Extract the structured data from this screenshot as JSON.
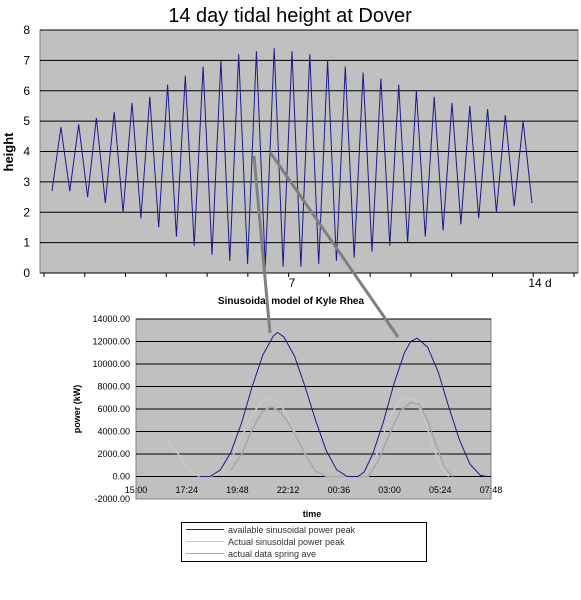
{
  "chart_data": [
    {
      "type": "line",
      "title": "14 day tidal height at Dover",
      "xlabel": "",
      "ylabel": "height",
      "ylim": [
        0,
        8
      ],
      "yticks": [
        "0",
        "1",
        "2",
        "3",
        "4",
        "5",
        "6",
        "7",
        "8"
      ],
      "xtick_labels": [
        "7",
        "14 d"
      ],
      "grid": true,
      "series": [
        {
          "values": [
            2.7,
            4.8,
            2.7,
            4.9,
            2.5,
            5.1,
            2.3,
            5.3,
            2.0,
            5.6,
            1.8,
            5.8,
            1.5,
            6.2,
            1.2,
            6.5,
            0.9,
            6.8,
            0.6,
            7.0,
            0.4,
            7.2,
            0.3,
            7.3,
            0.2,
            7.4,
            0.2,
            7.3,
            0.2,
            7.2,
            0.3,
            7.0,
            0.4,
            6.8,
            0.5,
            6.6,
            0.7,
            6.4,
            0.9,
            6.2,
            1.0,
            6.0,
            1.2,
            5.8,
            1.4,
            5.6,
            1.6,
            5.5,
            1.8,
            5.4,
            2.0,
            5.2,
            2.2,
            5.0,
            2.3
          ]
        }
      ],
      "colors": {
        "line": "#1a1a8c",
        "plot_bg": "#c0c0c0",
        "grid": "#000000"
      }
    },
    {
      "type": "line",
      "title": "Sinusoidal model of Kyle Rhea",
      "xlabel": "time",
      "ylabel": "power (kW)",
      "ylim": [
        -2000,
        14000
      ],
      "yticks": [
        "-2000.00",
        "0.00",
        "2000.00",
        "4000.00",
        "6000.00",
        "8000.00",
        "10000.00",
        "12000.00",
        "14000.00"
      ],
      "x_categories": [
        "15:00",
        "17:24",
        "19:48",
        "22:12",
        "00:36",
        "03:00",
        "05:24",
        "07:48"
      ],
      "grid": true,
      "legend_position": "bottom",
      "series": [
        {
          "name": "available sinusoidal power peak",
          "x": [
            "15:00",
            "17:24",
            "19:48",
            "22:12",
            "00:36",
            "03:00",
            "05:24",
            "07:48"
          ],
          "points_hours": [
            [
              18.0,
              0
            ],
            [
              18.5,
              0
            ],
            [
              19.0,
              600
            ],
            [
              19.5,
              2200
            ],
            [
              20.0,
              4800
            ],
            [
              20.5,
              8000
            ],
            [
              21.0,
              10800
            ],
            [
              21.5,
              12500
            ],
            [
              21.7,
              12800
            ],
            [
              22.0,
              12400
            ],
            [
              22.5,
              10700
            ],
            [
              23.0,
              8000
            ],
            [
              23.5,
              5000
            ],
            [
              24.0,
              2300
            ],
            [
              24.5,
              600
            ],
            [
              25.0,
              0
            ],
            [
              25.5,
              0
            ],
            [
              25.8,
              400
            ],
            [
              26.2,
              2000
            ],
            [
              26.7,
              4800
            ],
            [
              27.2,
              8200
            ],
            [
              27.7,
              11000
            ],
            [
              28.0,
              12000
            ],
            [
              28.3,
              12300
            ],
            [
              28.8,
              11500
            ],
            [
              29.3,
              9300
            ],
            [
              29.8,
              6200
            ],
            [
              30.3,
              3300
            ],
            [
              30.8,
              1100
            ],
            [
              31.3,
              100
            ],
            [
              31.6,
              0
            ]
          ],
          "color": "#1a1a8c"
        },
        {
          "name": "Actual sinusoidal power peak",
          "points_hours": [
            [
              16.4,
              3400
            ],
            [
              17.0,
              2000
            ],
            [
              17.5,
              500
            ],
            [
              18.0,
              0
            ],
            [
              18.5,
              0
            ],
            [
              19.0,
              300
            ],
            [
              19.5,
              1500
            ],
            [
              20.0,
              3500
            ],
            [
              20.5,
              5500
            ],
            [
              21.0,
              6800
            ],
            [
              21.4,
              7000
            ],
            [
              21.8,
              6600
            ],
            [
              22.2,
              5200
            ],
            [
              22.7,
              3200
            ],
            [
              23.2,
              1300
            ],
            [
              23.7,
              200
            ],
            [
              24.2,
              0
            ],
            [
              25.5,
              0
            ],
            [
              25.9,
              300
            ],
            [
              26.4,
              2000
            ],
            [
              26.9,
              4800
            ],
            [
              27.4,
              6600
            ],
            [
              27.8,
              7000
            ],
            [
              28.2,
              6800
            ],
            [
              28.6,
              5400
            ],
            [
              29.0,
              3000
            ],
            [
              29.4,
              900
            ],
            [
              29.8,
              0
            ]
          ],
          "color": "#c8c8c8"
        },
        {
          "name": "actual data spring ave",
          "points_hours": [
            [
              19.5,
              600
            ],
            [
              20.0,
              2000
            ],
            [
              20.5,
              4200
            ],
            [
              21.0,
              5800
            ],
            [
              21.4,
              6200
            ],
            [
              21.8,
              5800
            ],
            [
              22.2,
              4800
            ],
            [
              22.6,
              3500
            ],
            [
              23.0,
              2000
            ],
            [
              23.5,
              500
            ],
            [
              24.0,
              0
            ],
            [
              26.0,
              0
            ],
            [
              26.5,
              1500
            ],
            [
              27.0,
              3800
            ],
            [
              27.5,
              5800
            ],
            [
              28.0,
              6600
            ],
            [
              28.4,
              6400
            ],
            [
              28.8,
              5000
            ],
            [
              29.2,
              2800
            ],
            [
              29.6,
              800
            ],
            [
              30.0,
              0
            ]
          ],
          "color": "#a8a8a8"
        }
      ],
      "colors": {
        "plot_bg": "#c0c0c0",
        "grid": "#000000"
      }
    }
  ],
  "callout_color": "#808080"
}
